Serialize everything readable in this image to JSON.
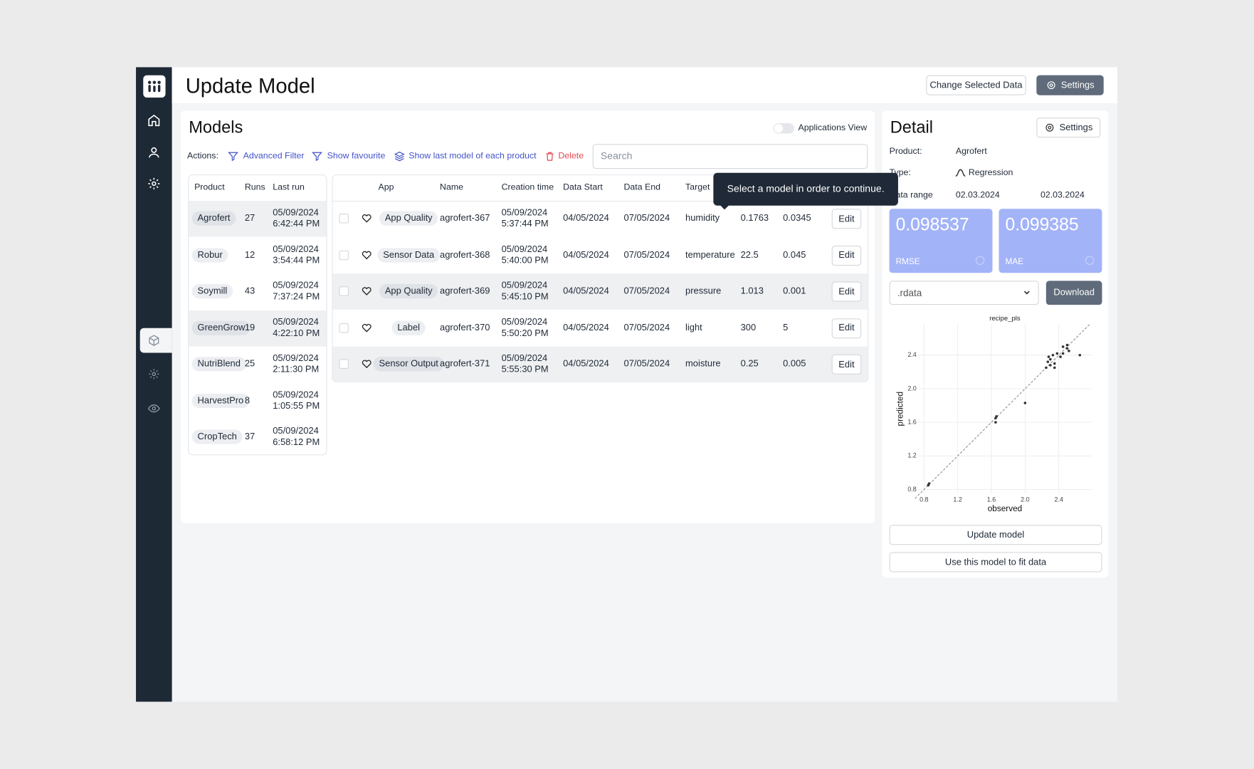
{
  "header": {
    "title": "Update Model",
    "change_data": "Change Selected Data",
    "settings": "Settings"
  },
  "models": {
    "title": "Models",
    "applications_view": "Applications View",
    "actions_label": "Actions:",
    "actions": [
      "Advanced Filter",
      "Show favourite",
      "Show last model of each product",
      "Delete"
    ],
    "search_placeholder": "Search",
    "products": {
      "columns": [
        "Product",
        "Runs",
        "Last run"
      ],
      "rows": [
        [
          "Agrofert",
          27,
          "05/09/2024 6:42:44 PM"
        ],
        [
          "Robur",
          12,
          "05/09/2024 3:54:44 PM"
        ],
        [
          "Soymill",
          43,
          "05/09/2024 7:37:24 PM"
        ],
        [
          "GreenGrow",
          19,
          "05/09/2024 4:22:10 PM"
        ],
        [
          "NutriBlend",
          25,
          "05/09/2024 2:11:30 PM"
        ],
        [
          "HarvestPro",
          8,
          "05/09/2024 1:05:55 PM"
        ],
        [
          "CropTech",
          37,
          "05/09/2024 6:58:12 PM"
        ]
      ]
    },
    "table": {
      "columns": [
        "App",
        "Name",
        "Creation time",
        "Data Start",
        "Data End",
        "Target"
      ],
      "edit": "Edit",
      "rows": [
        [
          "App Quality",
          "agrofert-367",
          "05/09/2024 5:37:44 PM",
          "04/05/2024",
          "07/05/2024",
          "humidity",
          0.1763,
          0.0345
        ],
        [
          "Sensor Data",
          "agrofert-368",
          "05/09/2024 5:40:00 PM",
          "04/05/2024",
          "07/05/2024",
          "temperature",
          22.5,
          0.045
        ],
        [
          "App Quality",
          "agrofert-369",
          "05/09/2024 5:45:10 PM",
          "04/05/2024",
          "07/05/2024",
          "pressure",
          1.013,
          0.001
        ],
        [
          "Label",
          "agrofert-370",
          "05/09/2024 5:50:20 PM",
          "04/05/2024",
          "07/05/2024",
          "light",
          300,
          5
        ],
        [
          "Sensor Output",
          "agrofert-371",
          "05/09/2024 5:55:30 PM",
          "04/05/2024",
          "07/05/2024",
          "moisture",
          0.25,
          0.005
        ]
      ]
    },
    "tooltip": "Select a model in order to continue."
  },
  "detail": {
    "title": "Detail",
    "settings": "Settings",
    "product_label": "Product:",
    "product": "Agrofert",
    "type_label": "Type:",
    "type": "Regression",
    "range_label": "Data range",
    "range_from": "02.03.2024",
    "range_to": "02.03.2024",
    "metrics": [
      {
        "value": 0.098537,
        "label": "RMSE"
      },
      {
        "value": 0.099385,
        "label": "MAE"
      }
    ],
    "format": ".rdata",
    "download": "Download",
    "update": "Update model",
    "fit": "Use this model to fit data"
  },
  "chart_data": {
    "type": "scatter",
    "title": "recipe_pls",
    "x_label": "observed",
    "y_label": "predicted",
    "xlim": [
      0.73,
      2.79
    ],
    "ylim": [
      0.75,
      2.77
    ],
    "xticks": [
      0.8,
      1.2,
      1.6,
      {
        "value": 2,
        "label": "2.0"
      },
      2.4
    ],
    "yticks": [
      0.8,
      1.2,
      1.6,
      {
        "value": 2,
        "label": "2.0"
      },
      2.4
    ],
    "grid": true,
    "color": "#333333",
    "x": [
      0.85,
      0.86,
      1.65,
      1.66,
      1.65,
      2.0,
      2.25,
      2.27,
      2.28,
      2.3,
      2.33,
      2.35,
      2.35,
      2.38,
      2.42,
      2.45,
      2.5,
      2.5,
      2.52,
      2.65,
      2.3,
      2.45
    ],
    "y": [
      0.85,
      0.87,
      1.6,
      1.67,
      1.65,
      1.83,
      2.25,
      2.32,
      2.38,
      2.35,
      2.4,
      2.3,
      2.25,
      2.42,
      2.38,
      2.5,
      2.48,
      2.52,
      2.45,
      2.4,
      2.28,
      2.42
    ]
  }
}
